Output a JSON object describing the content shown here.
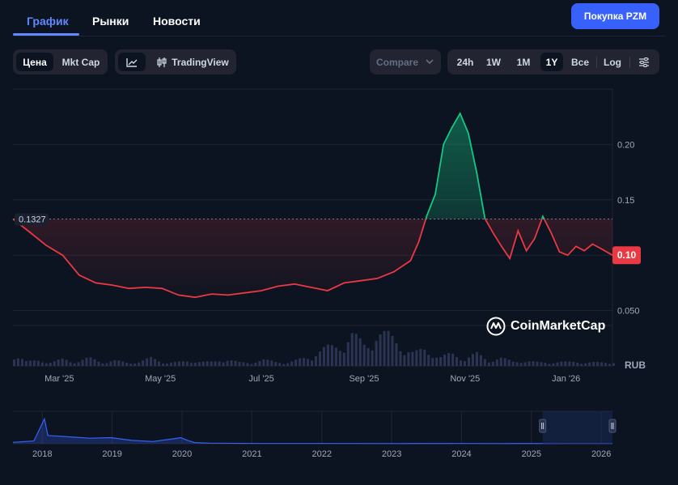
{
  "tabs": [
    {
      "label": "График",
      "active": true
    },
    {
      "label": "Рынки",
      "active": false
    },
    {
      "label": "Новости",
      "active": false
    }
  ],
  "buy_button": "Покупка PZM",
  "metric_toggle": {
    "price": "Цена",
    "mktcap": "Mkt Cap",
    "selected": "Цена"
  },
  "chart_style": {
    "tradingview": "TradingView"
  },
  "compare": {
    "label": "Compare"
  },
  "ranges": [
    "24h",
    "1W",
    "1M",
    "1Y",
    "Все"
  ],
  "selected_range": "1Y",
  "log_label": "Log",
  "colors": {
    "up": "#16c784",
    "down": "#ea3943",
    "accent": "#3861fb",
    "volume": "#2b3553",
    "bg": "#0d1421",
    "mini": "#3861fb"
  },
  "watermark": "CoinMarketCap",
  "currency_label": "RUB",
  "chart_data": {
    "type": "line",
    "series": [],
    "x": [
      "2025-02-01",
      "2025-02-11",
      "2025-02-21",
      "2025-03-03",
      "2025-03-13",
      "2025-03-23",
      "2025-04-02",
      "2025-04-12",
      "2025-04-22",
      "2025-05-02",
      "2025-05-12",
      "2025-05-22",
      "2025-06-01",
      "2025-06-11",
      "2025-06-21",
      "2025-07-01",
      "2025-07-11",
      "2025-07-21",
      "2025-07-31",
      "2025-08-10",
      "2025-08-20",
      "2025-08-30",
      "2025-09-09",
      "2025-09-19",
      "2025-09-29",
      "2025-10-04",
      "2025-10-09",
      "2025-10-14",
      "2025-10-19",
      "2025-10-24",
      "2025-10-29",
      "2025-11-03",
      "2025-11-08",
      "2025-11-13",
      "2025-11-18",
      "2025-11-23",
      "2025-11-28",
      "2025-12-03",
      "2025-12-08",
      "2025-12-13",
      "2025-12-18",
      "2025-12-23",
      "2025-12-28",
      "2026-01-02",
      "2026-01-07",
      "2026-01-12",
      "2026-01-17",
      "2026-01-22",
      "2026-01-29"
    ],
    "values": [
      0.1327,
      0.121,
      0.109,
      0.1,
      0.082,
      0.075,
      0.073,
      0.07,
      0.071,
      0.07,
      0.064,
      0.062,
      0.065,
      0.064,
      0.066,
      0.068,
      0.072,
      0.074,
      0.071,
      0.068,
      0.075,
      0.077,
      0.079,
      0.085,
      0.095,
      0.112,
      0.136,
      0.155,
      0.2,
      0.215,
      0.228,
      0.21,
      0.175,
      0.133,
      0.12,
      0.108,
      0.097,
      0.122,
      0.104,
      0.115,
      0.135,
      0.12,
      0.103,
      0.1,
      0.108,
      0.104,
      0.11,
      0.106,
      0.1
    ],
    "baseline": 0.1327,
    "current_price_label": "0.10",
    "baseline_label": "0.1327",
    "y_ticks": [
      "0.050",
      "0.10",
      "0.15",
      "0.20"
    ],
    "y_tick_values": [
      0.05,
      0.1,
      0.15,
      0.2
    ],
    "ylim": [
      0.0,
      0.25
    ],
    "x_tick_labels": [
      "Mar '25",
      "May '25",
      "Jul '25",
      "Sep '25",
      "Nov '25",
      "Jan '26"
    ],
    "x_tick_dates": [
      "2025-03-01",
      "2025-05-01",
      "2025-07-01",
      "2025-09-01",
      "2025-11-01",
      "2026-01-01"
    ],
    "xlim": [
      "2025-02-01",
      "2026-01-29"
    ],
    "volume": [
      0.3,
      0.1,
      0.15,
      0.1,
      0.2,
      0.1,
      0.2,
      0.1,
      0.15,
      0.1,
      0.1,
      0.2,
      0.1,
      0.1,
      0.15,
      0.1,
      0.1,
      0.2,
      0.1,
      0.1,
      0.15,
      0.1,
      0.1,
      0.2,
      0.3,
      0.45,
      0.5,
      0.9,
      0.6,
      0.8,
      0.75,
      0.55,
      0.35,
      0.5,
      0.2,
      0.3,
      0.2,
      0.35,
      0.15,
      0.2,
      0.1,
      0.15,
      0.1,
      0.1,
      0.1,
      0.1,
      0.1,
      0.1,
      0.1
    ],
    "grid": true,
    "navigator": {
      "years": [
        "2018",
        "2019",
        "2020",
        "2021",
        "2022",
        "2023",
        "2024",
        "2025",
        "2026"
      ],
      "year_start": 2017.5,
      "year_end": 2026.08,
      "series_t": [
        2017.5,
        2017.8,
        2017.95,
        2018.0,
        2018.3,
        2018.6,
        2018.9,
        2019.2,
        2019.5,
        2019.8,
        2019.9,
        2020.0,
        2020.1,
        2020.3,
        2021.0,
        2022.0,
        2023.0,
        2023.9,
        2024.5,
        2025.5,
        2026.08
      ],
      "series_v": [
        0.05,
        0.1,
        0.9,
        0.3,
        0.25,
        0.2,
        0.22,
        0.12,
        0.08,
        0.18,
        0.22,
        0.12,
        0.04,
        0.02,
        0.01,
        0.008,
        0.006,
        0.008,
        0.006,
        0.01,
        0.008
      ],
      "window_start": 2025.08,
      "window_end": 2026.08
    }
  }
}
